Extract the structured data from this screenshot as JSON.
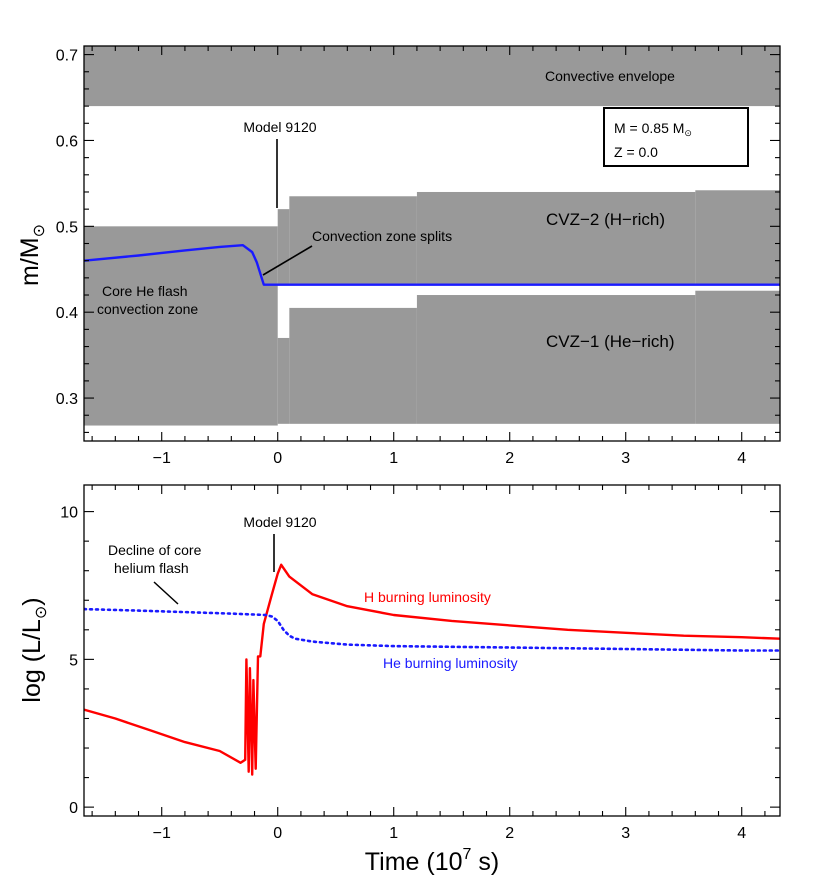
{
  "chart_data": [
    {
      "type": "area",
      "panel": "top",
      "ylabel": "m/M",
      "ylabel_sub": "⊙",
      "xlim": [
        -1.67,
        4.33
      ],
      "ylim": [
        0.25,
        0.71
      ],
      "x_ticks": [
        -1,
        0,
        1,
        2,
        3,
        4
      ],
      "x_tick_labels": [
        "−1",
        "0",
        "1",
        "2",
        "3",
        "4"
      ],
      "y_ticks": [
        0.3,
        0.4,
        0.5,
        0.6,
        0.7
      ],
      "y_tick_labels": [
        "0.3",
        "0.4",
        "0.5",
        "0.6",
        "0.7"
      ],
      "legend_box": {
        "line1": "M = 0.85 M",
        "line1_sub": "⊙",
        "line2": "Z = 0.0"
      },
      "annotations": {
        "envelope": "Convective envelope",
        "model": "Model 9120",
        "split": "Convection zone splits",
        "core_line1": "Core He flash",
        "core_line2": "convection zone",
        "cvz2": "CVZ−2 (H−rich)",
        "cvz1": "CVZ−1 (He−rich)"
      },
      "envelope_band": {
        "bottom": 0.64,
        "top": 0.71
      },
      "pre_split_zone": {
        "x_start": -1.67,
        "x_end": 0.0,
        "bottom": 0.268,
        "top": 0.5
      },
      "cvz2_steps": [
        {
          "x_start": 0.0,
          "x_end": 0.1,
          "bottom": 0.432,
          "top": 0.52
        },
        {
          "x_start": 0.1,
          "x_end": 1.2,
          "bottom": 0.432,
          "top": 0.535
        },
        {
          "x_start": 1.2,
          "x_end": 3.6,
          "bottom": 0.432,
          "top": 0.54
        },
        {
          "x_start": 3.6,
          "x_end": 4.33,
          "bottom": 0.432,
          "top": 0.542
        }
      ],
      "cvz1_steps": [
        {
          "x_start": 0.0,
          "x_end": 0.1,
          "bottom": 0.27,
          "top": 0.37
        },
        {
          "x_start": 0.1,
          "x_end": 1.2,
          "bottom": 0.27,
          "top": 0.405
        },
        {
          "x_start": 1.2,
          "x_end": 3.6,
          "bottom": 0.27,
          "top": 0.42
        },
        {
          "x_start": 3.6,
          "x_end": 4.33,
          "bottom": 0.27,
          "top": 0.425
        }
      ],
      "series": [
        {
          "name": "H/He boundary",
          "color": "#1a1aff",
          "x": [
            -1.67,
            -1.2,
            -0.8,
            -0.5,
            -0.3,
            -0.22,
            -0.18,
            -0.12,
            0.0,
            1.0,
            2.0,
            3.0,
            4.33
          ],
          "y": [
            0.46,
            0.466,
            0.472,
            0.476,
            0.478,
            0.47,
            0.458,
            0.432,
            0.432,
            0.432,
            0.432,
            0.432,
            0.432
          ]
        }
      ]
    },
    {
      "type": "line",
      "panel": "bottom",
      "ylabel": "log (L/L",
      "ylabel_sub": "⊙",
      "ylabel_end": ")",
      "xlabel": "Time (10",
      "xlabel_sup": "7",
      "xlabel_end": " s)",
      "xlim": [
        -1.67,
        4.33
      ],
      "ylim": [
        -0.3,
        10.9
      ],
      "x_ticks": [
        -1,
        0,
        1,
        2,
        3,
        4
      ],
      "x_tick_labels": [
        "−1",
        "0",
        "1",
        "2",
        "3",
        "4"
      ],
      "y_ticks": [
        0,
        5,
        10
      ],
      "y_tick_labels": [
        "0",
        "5",
        "10"
      ],
      "annotations": {
        "model": "Model 9120",
        "decline_line1": "Decline of core",
        "decline_line2": "helium flash",
        "h_label": "H burning luminosity",
        "he_label": "He burning luminosity"
      },
      "series": [
        {
          "name": "H burning luminosity",
          "color": "#ff0000",
          "style": "solid",
          "x": [
            -1.67,
            -1.4,
            -1.1,
            -0.8,
            -0.5,
            -0.32,
            -0.28,
            -0.27,
            -0.25,
            -0.24,
            -0.22,
            -0.21,
            -0.19,
            -0.17,
            -0.15,
            -0.12,
            -0.05,
            0.0,
            0.03,
            0.1,
            0.3,
            0.6,
            1.0,
            1.5,
            2.0,
            2.5,
            3.0,
            3.5,
            4.0,
            4.33
          ],
          "y": [
            3.3,
            3.0,
            2.6,
            2.2,
            1.9,
            1.5,
            1.6,
            5.0,
            1.2,
            4.7,
            1.1,
            4.3,
            1.3,
            5.1,
            5.1,
            6.2,
            7.2,
            7.9,
            8.2,
            7.8,
            7.2,
            6.8,
            6.5,
            6.3,
            6.15,
            6.0,
            5.9,
            5.8,
            5.75,
            5.7
          ]
        },
        {
          "name": "He burning luminosity",
          "color": "#1a1aff",
          "style": "dotted",
          "x": [
            -1.67,
            -1.2,
            -0.8,
            -0.4,
            -0.1,
            -0.05,
            0.0,
            0.05,
            0.1,
            0.15,
            0.3,
            0.6,
            1.0,
            2.0,
            3.0,
            4.0,
            4.33
          ],
          "y": [
            6.7,
            6.65,
            6.6,
            6.55,
            6.5,
            6.45,
            6.3,
            6.0,
            5.8,
            5.7,
            5.6,
            5.5,
            5.45,
            5.4,
            5.35,
            5.3,
            5.3
          ]
        }
      ]
    }
  ]
}
